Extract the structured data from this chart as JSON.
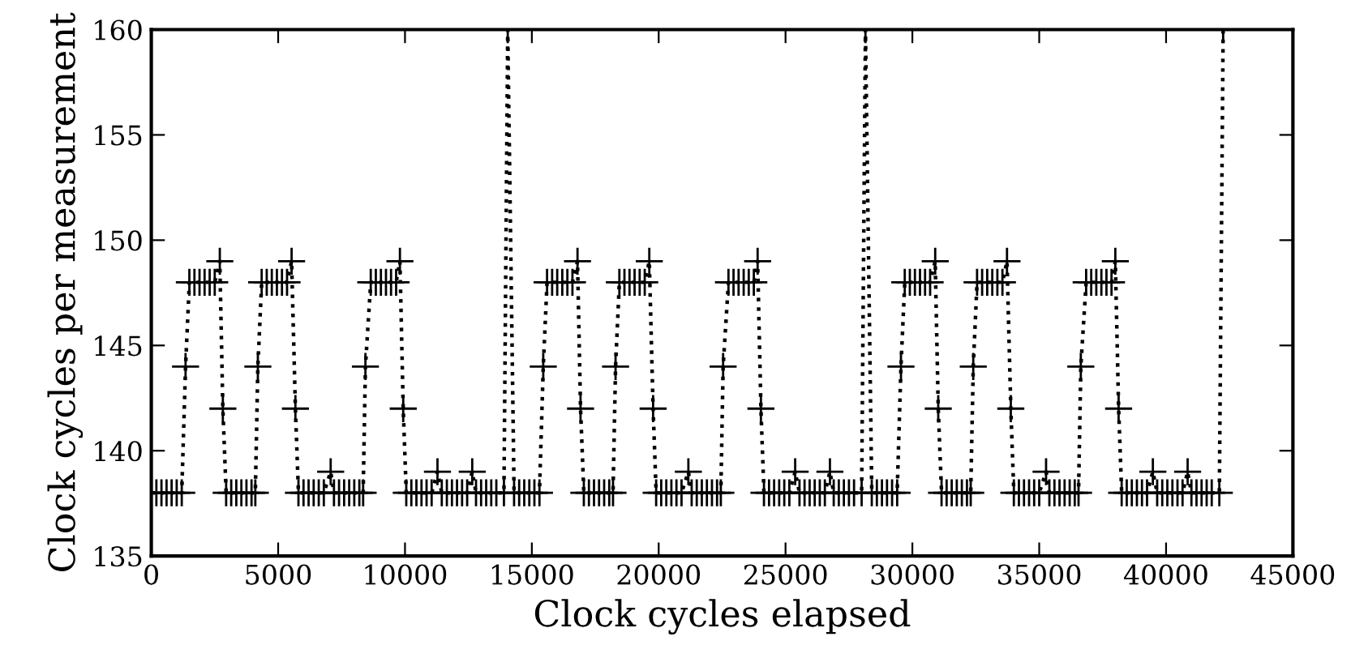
{
  "chart_data": {
    "type": "line",
    "xlabel": "Clock cycles elapsed",
    "ylabel": "Clock cycles per measurement",
    "xlim": [
      0,
      45000
    ],
    "xticks": [
      0,
      5000,
      10000,
      15000,
      20000,
      25000,
      30000,
      35000,
      40000,
      45000
    ],
    "ylim": [
      135,
      160
    ],
    "yticks": [
      135,
      140,
      145,
      150,
      155,
      160
    ],
    "grid": false,
    "legend": false,
    "marker": "cross",
    "line_style": "dotted",
    "series": [
      {
        "color": "#000000",
        "x": [
          0,
          200,
          400,
          600,
          800,
          1000,
          1200,
          1350,
          1500,
          1700,
          1900,
          2100,
          2300,
          2500,
          2700,
          2820,
          2950,
          3150,
          3350,
          3550,
          3750,
          3950,
          4100,
          4200,
          4350,
          4550,
          4750,
          4950,
          5150,
          5350,
          5530,
          5680,
          5800,
          6000,
          6200,
          6400,
          6600,
          6800,
          7070,
          7200,
          7400,
          7600,
          7800,
          8000,
          8200,
          8350,
          8440,
          8650,
          8850,
          9050,
          9250,
          9450,
          9650,
          9800,
          9930,
          10050,
          10250,
          10450,
          10650,
          10850,
          11050,
          11280,
          11450,
          11650,
          11850,
          12050,
          12250,
          12450,
          12650,
          12800,
          13000,
          13200,
          13400,
          13600,
          13900,
          14050,
          14300,
          14500,
          14700,
          14900,
          15100,
          15300,
          15450,
          15600,
          15800,
          16000,
          16200,
          16400,
          16600,
          16800,
          16920,
          17050,
          17250,
          17450,
          17650,
          17850,
          18050,
          18200,
          18300,
          18450,
          18650,
          18850,
          19050,
          19250,
          19450,
          19630,
          19780,
          19900,
          20100,
          20300,
          20500,
          20700,
          20900,
          21170,
          21300,
          21500,
          21700,
          21900,
          22100,
          22300,
          22450,
          22540,
          22750,
          22950,
          23150,
          23350,
          23550,
          23750,
          23900,
          24030,
          24150,
          24350,
          24550,
          24750,
          24950,
          25150,
          25380,
          25550,
          25750,
          25950,
          26150,
          26350,
          26550,
          26750,
          26900,
          27100,
          27300,
          27500,
          27700,
          28000,
          28150,
          28400,
          28600,
          28800,
          29000,
          29200,
          29400,
          29550,
          29700,
          29900,
          30100,
          30300,
          30500,
          30700,
          30900,
          31020,
          31150,
          31350,
          31550,
          31750,
          31950,
          32150,
          32300,
          32400,
          32550,
          32750,
          32950,
          33150,
          33350,
          33550,
          33730,
          33880,
          34000,
          34200,
          34400,
          34600,
          34800,
          35000,
          35270,
          35400,
          35600,
          35800,
          36000,
          36200,
          36400,
          36550,
          36640,
          36850,
          37050,
          37250,
          37450,
          37650,
          37850,
          38000,
          38130,
          38250,
          38450,
          38650,
          38850,
          39050,
          39250,
          39480,
          39650,
          39850,
          40050,
          40250,
          40450,
          40650,
          40850,
          41000,
          41200,
          41400,
          41600,
          41800,
          42100,
          42250
        ],
        "values": [
          138,
          138,
          138,
          138,
          138,
          138,
          138,
          144,
          148,
          148,
          148,
          148,
          148,
          148,
          149,
          142,
          138,
          138,
          138,
          138,
          138,
          138,
          138,
          144,
          148,
          148,
          148,
          148,
          148,
          148,
          149,
          142,
          138,
          138,
          138,
          138,
          138,
          138,
          139,
          138,
          138,
          138,
          138,
          138,
          138,
          138,
          144,
          148,
          148,
          148,
          148,
          148,
          148,
          149,
          142,
          138,
          138,
          138,
          138,
          138,
          138,
          139,
          138,
          138,
          138,
          138,
          138,
          138,
          139,
          138,
          138,
          138,
          138,
          138,
          138,
          160,
          138,
          138,
          138,
          138,
          138,
          138,
          144,
          148,
          148,
          148,
          148,
          148,
          148,
          149,
          142,
          138,
          138,
          138,
          138,
          138,
          138,
          138,
          144,
          148,
          148,
          148,
          148,
          148,
          148,
          149,
          142,
          138,
          138,
          138,
          138,
          138,
          138,
          139,
          138,
          138,
          138,
          138,
          138,
          138,
          138,
          144,
          148,
          148,
          148,
          148,
          148,
          148,
          149,
          142,
          138,
          138,
          138,
          138,
          138,
          138,
          139,
          138,
          138,
          138,
          138,
          138,
          138,
          139,
          138,
          138,
          138,
          138,
          138,
          138,
          160,
          138,
          138,
          138,
          138,
          138,
          138,
          144,
          148,
          148,
          148,
          148,
          148,
          148,
          149,
          142,
          138,
          138,
          138,
          138,
          138,
          138,
          138,
          144,
          148,
          148,
          148,
          148,
          148,
          148,
          149,
          142,
          138,
          138,
          138,
          138,
          138,
          138,
          139,
          138,
          138,
          138,
          138,
          138,
          138,
          138,
          144,
          148,
          148,
          148,
          148,
          148,
          148,
          149,
          142,
          138,
          138,
          138,
          138,
          138,
          138,
          139,
          138,
          138,
          138,
          138,
          138,
          138,
          139,
          138,
          138,
          138,
          138,
          138,
          138,
          160
        ]
      }
    ]
  }
}
